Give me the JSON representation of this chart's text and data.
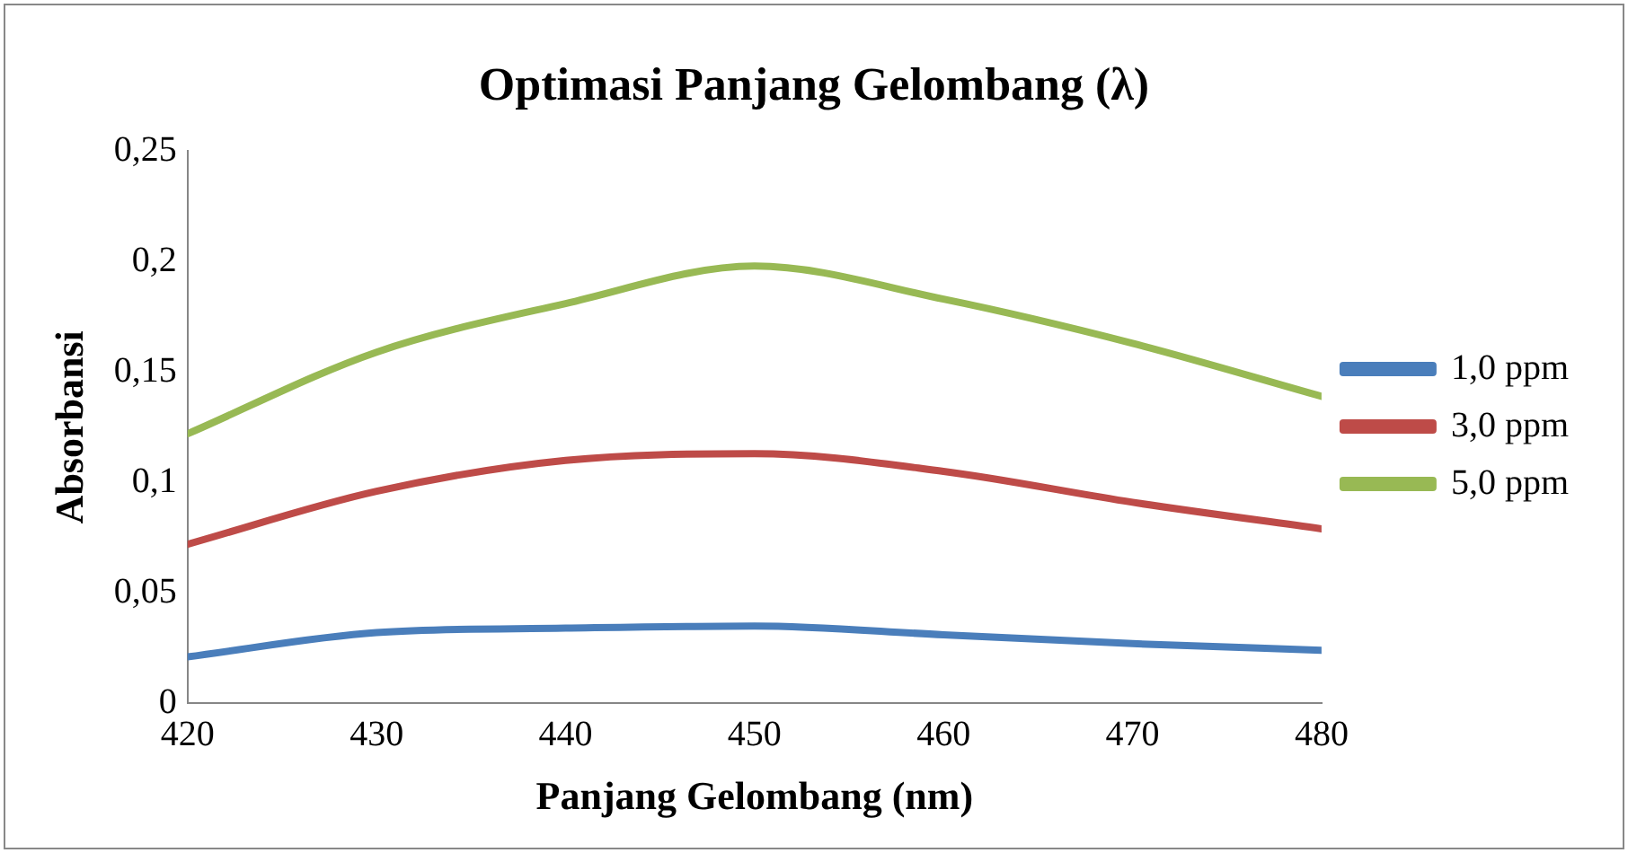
{
  "chart_data": {
    "type": "line",
    "title": "Optimasi Panjang Gelombang (λ)",
    "xlabel": "Panjang Gelombang (nm)",
    "ylabel": "Absorbansi",
    "x": [
      420,
      430,
      440,
      450,
      460,
      470,
      480
    ],
    "series": [
      {
        "name": "1,0 ppm",
        "color": "#4a7ebb",
        "values": [
          0.021,
          0.032,
          0.034,
          0.035,
          0.031,
          0.027,
          0.024
        ]
      },
      {
        "name": "3,0 ppm",
        "color": "#be4b48",
        "values": [
          0.072,
          0.096,
          0.11,
          0.113,
          0.105,
          0.091,
          0.079
        ]
      },
      {
        "name": "5,0 ppm",
        "color": "#98b954",
        "values": [
          0.122,
          0.159,
          0.181,
          0.198,
          0.183,
          0.163,
          0.139
        ]
      }
    ],
    "xlim": [
      420,
      480
    ],
    "xticks": [
      420,
      430,
      440,
      450,
      460,
      470,
      480
    ],
    "ylim": [
      0,
      0.25
    ],
    "yticks": [
      {
        "value": 0,
        "label": "0"
      },
      {
        "value": 0.05,
        "label": "0,05"
      },
      {
        "value": 0.1,
        "label": "0,1"
      },
      {
        "value": 0.15,
        "label": "0,15"
      },
      {
        "value": 0.2,
        "label": "0,2"
      },
      {
        "value": 0.25,
        "label": "0,25"
      }
    ],
    "grid": false,
    "legend": "right",
    "marker": "none",
    "line_style": "solid"
  }
}
